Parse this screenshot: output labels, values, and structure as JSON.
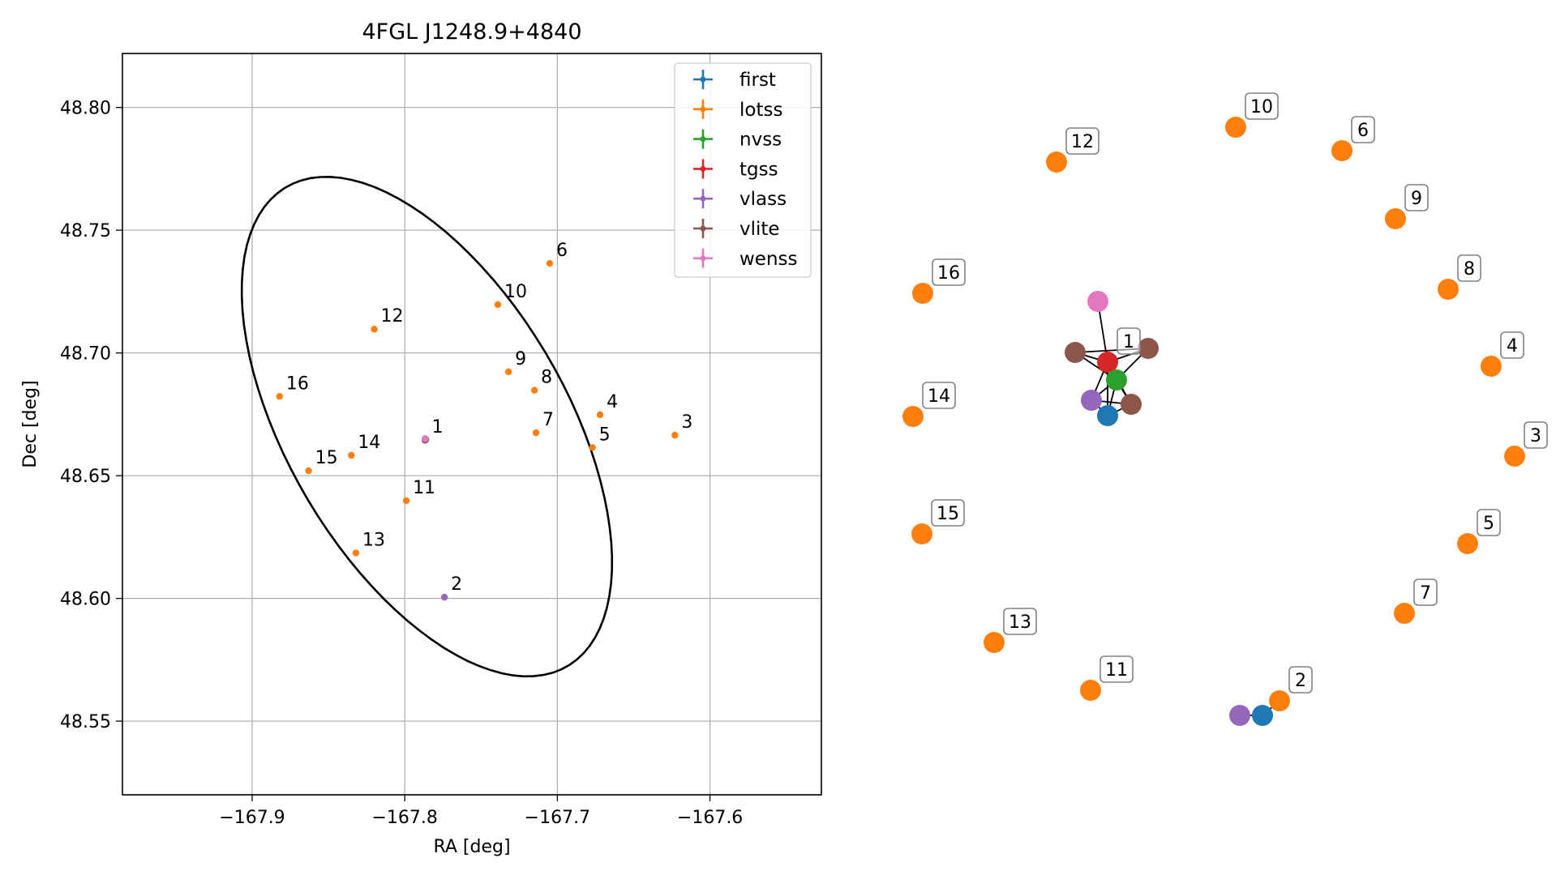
{
  "chart_data": [
    {
      "type": "scatter",
      "title": "4FGL J1248.9+4840",
      "xlabel": "RA [deg]",
      "ylabel": "Dec [deg]",
      "xlim": [
        -167.985,
        -167.527
      ],
      "ylim": [
        48.52,
        48.822
      ],
      "xticks": [
        -167.9,
        -167.8,
        -167.7,
        -167.6
      ],
      "yticks": [
        48.55,
        48.6,
        48.65,
        48.7,
        48.75,
        48.8
      ],
      "xtick_labels": [
        "−167.9",
        "−167.8",
        "−167.7",
        "−167.6"
      ],
      "ytick_labels": [
        "48.55",
        "48.60",
        "48.65",
        "48.70",
        "48.75",
        "48.80"
      ],
      "grid": true,
      "legend_position": "top-right",
      "ellipse": {
        "center": [
          -167.7855,
          48.67
        ],
        "a": 0.14,
        "b": 0.074,
        "angle_deg": -36,
        "color": "#000000"
      },
      "series": [
        {
          "name": "first",
          "color": "#1f77b4",
          "points": [
            {
              "label": "1",
              "ra": -167.7865,
              "dec": 48.6645
            }
          ]
        },
        {
          "name": "lotss",
          "color": "#ff7f0e",
          "points": [
            {
              "label": "3",
              "ra": -167.623,
              "dec": 48.6665
            },
            {
              "label": "4",
              "ra": -167.672,
              "dec": 48.6748
            },
            {
              "label": "5",
              "ra": -167.677,
              "dec": 48.6615
            },
            {
              "label": "6",
              "ra": -167.705,
              "dec": 48.7365
            },
            {
              "label": "7",
              "ra": -167.714,
              "dec": 48.6675
            },
            {
              "label": "8",
              "ra": -167.715,
              "dec": 48.6848
            },
            {
              "label": "9",
              "ra": -167.732,
              "dec": 48.6923
            },
            {
              "label": "10",
              "ra": -167.739,
              "dec": 48.7197
            },
            {
              "label": "11",
              "ra": -167.799,
              "dec": 48.6398
            },
            {
              "label": "12",
              "ra": -167.82,
              "dec": 48.7097
            },
            {
              "label": "13",
              "ra": -167.832,
              "dec": 48.6185
            },
            {
              "label": "14",
              "ra": -167.835,
              "dec": 48.6583
            },
            {
              "label": "15",
              "ra": -167.863,
              "dec": 48.652
            },
            {
              "label": "16",
              "ra": -167.882,
              "dec": 48.6823
            }
          ]
        },
        {
          "name": "nvss",
          "color": "#2ca02c",
          "points": [
            {
              "label": "1",
              "ra": -167.7862,
              "dec": 48.6648
            }
          ]
        },
        {
          "name": "tgss",
          "color": "#d62728",
          "points": [
            {
              "label": "1",
              "ra": -167.7866,
              "dec": 48.665
            }
          ]
        },
        {
          "name": "vlass",
          "color": "#9467bd",
          "points": [
            {
              "label": "1",
              "ra": -167.7868,
              "dec": 48.6644
            },
            {
              "label": "2",
              "ra": -167.774,
              "dec": 48.6005
            }
          ]
        },
        {
          "name": "vlite",
          "color": "#8c564b",
          "points": [
            {
              "label": "1",
              "ra": -167.7864,
              "dec": 48.6647
            }
          ]
        },
        {
          "name": "wenss",
          "color": "#e377c2",
          "points": [
            {
              "label": "1",
              "ra": -167.7866,
              "dec": 48.6651
            }
          ]
        }
      ]
    },
    {
      "type": "network",
      "nodes": [
        {
          "label": "1",
          "color": "#d62728",
          "labeled": true
        },
        {
          "label": "",
          "color": "#2ca02c",
          "labeled": false
        },
        {
          "label": "",
          "color": "#1f77b4",
          "labeled": false
        },
        {
          "label": "",
          "color": "#9467bd",
          "labeled": false
        },
        {
          "label": "",
          "color": "#8c564b",
          "labeled": false
        },
        {
          "label": "",
          "color": "#8c564b",
          "labeled": false
        },
        {
          "label": "",
          "color": "#8c564b",
          "labeled": false
        },
        {
          "label": "",
          "color": "#e377c2",
          "labeled": false
        },
        {
          "label": "2",
          "color": "#ff7f0e",
          "labeled": true
        },
        {
          "label": "",
          "color": "#1f77b4",
          "labeled": false
        },
        {
          "label": "",
          "color": "#9467bd",
          "labeled": false
        },
        {
          "label": "3",
          "color": "#ff7f0e",
          "labeled": true
        },
        {
          "label": "4",
          "color": "#ff7f0e",
          "labeled": true
        },
        {
          "label": "5",
          "color": "#ff7f0e",
          "labeled": true
        },
        {
          "label": "6",
          "color": "#ff7f0e",
          "labeled": true
        },
        {
          "label": "7",
          "color": "#ff7f0e",
          "labeled": true
        },
        {
          "label": "8",
          "color": "#ff7f0e",
          "labeled": true
        },
        {
          "label": "9",
          "color": "#ff7f0e",
          "labeled": true
        },
        {
          "label": "10",
          "color": "#ff7f0e",
          "labeled": true
        },
        {
          "label": "11",
          "color": "#ff7f0e",
          "labeled": true
        },
        {
          "label": "12",
          "color": "#ff7f0e",
          "labeled": true
        },
        {
          "label": "13",
          "color": "#ff7f0e",
          "labeled": true
        },
        {
          "label": "14",
          "color": "#ff7f0e",
          "labeled": true
        },
        {
          "label": "15",
          "color": "#ff7f0e",
          "labeled": true
        },
        {
          "label": "16",
          "color": "#ff7f0e",
          "labeled": true
        }
      ]
    }
  ]
}
